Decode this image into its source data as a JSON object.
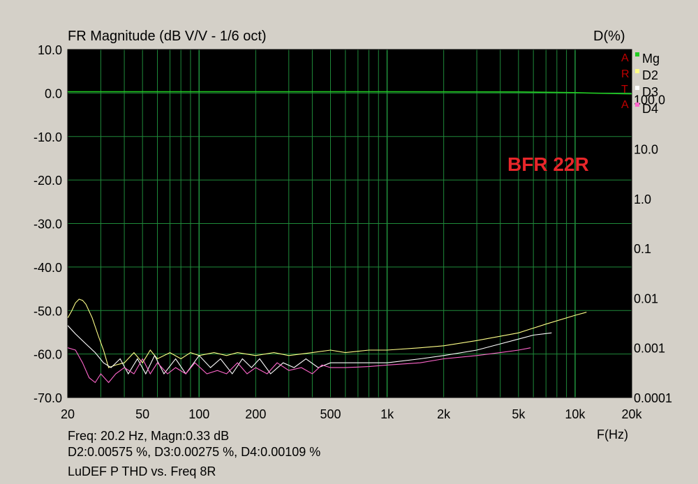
{
  "header": {
    "title": "FR Magnitude (dB V/V - 1/6 oct)",
    "right_title": "D(%)"
  },
  "arta_letters": [
    "A",
    "R",
    "T",
    "A"
  ],
  "footer": {
    "line1": "Freq: 20.2 Hz, Magn:0.33 dB",
    "line2": "D2:0.00575 %, D3:0.00275 %, D4:0.00109 %",
    "line3": "LuDEF P THD vs. Freq 8R"
  },
  "annotation": {
    "text": "BFR 22R",
    "color": "#e8262a"
  },
  "colors": {
    "background": "#d4d0c8",
    "plot_bg": "#000000",
    "grid": "#1f8a3a",
    "Mg": "#22cc22",
    "D2": "#ffff88",
    "D3": "#ffffff",
    "D4": "#ff66cc"
  },
  "chart_data": {
    "type": "line",
    "title": "FR Magnitude (dB V/V - 1/6 oct)",
    "xlabel": "F(Hz)",
    "ylabel_left": "dB",
    "ylabel_right": "D(%)",
    "x_scale": "log",
    "xlim": [
      20,
      20000
    ],
    "ylim_left": [
      -70,
      10
    ],
    "ylim_right": [
      0.0001,
      1000
    ],
    "y_right_scale": "log",
    "grid": true,
    "legend_position": "top-right",
    "x_ticks": [
      {
        "v": 20,
        "label": "20"
      },
      {
        "v": 50,
        "label": "50"
      },
      {
        "v": 100,
        "label": "100"
      },
      {
        "v": 200,
        "label": "200"
      },
      {
        "v": 500,
        "label": "500"
      },
      {
        "v": 1000,
        "label": "1k"
      },
      {
        "v": 2000,
        "label": "2k"
      },
      {
        "v": 5000,
        "label": "5k"
      },
      {
        "v": 10000,
        "label": "10k"
      },
      {
        "v": 20000,
        "label": "20k"
      }
    ],
    "y_left_ticks": [
      {
        "v": 10,
        "label": "10.0"
      },
      {
        "v": 0,
        "label": "0.0"
      },
      {
        "v": -10,
        "label": "-10.0"
      },
      {
        "v": -20,
        "label": "-20.0"
      },
      {
        "v": -30,
        "label": "-30.0"
      },
      {
        "v": -40,
        "label": "-40.0"
      },
      {
        "v": -50,
        "label": "-50.0"
      },
      {
        "v": -60,
        "label": "-60.0"
      },
      {
        "v": -70,
        "label": "-70.0"
      }
    ],
    "y_right_ticks": [
      {
        "v": 100,
        "label": "100.0"
      },
      {
        "v": 10,
        "label": "10.0"
      },
      {
        "v": 1,
        "label": "1.0"
      },
      {
        "v": 0.1,
        "label": "0.1"
      },
      {
        "v": 0.01,
        "label": "0.01"
      },
      {
        "v": 0.001,
        "label": "0.001"
      },
      {
        "v": 0.0001,
        "label": "0.0001"
      }
    ],
    "series": [
      {
        "name": "Mg",
        "axis": "left",
        "color": "#22cc22",
        "x": [
          20,
          50,
          100,
          500,
          1000,
          5000,
          10000,
          12000,
          15000,
          20000
        ],
        "y": [
          0.3,
          0.3,
          0.3,
          0.3,
          0.3,
          0.25,
          0.1,
          0.0,
          -0.1,
          -0.2
        ]
      },
      {
        "name": "D2",
        "axis": "right",
        "color": "#ffff88",
        "x": [
          20,
          21,
          22,
          23,
          24,
          25,
          27,
          29,
          31,
          33,
          36,
          40,
          45,
          50,
          55,
          60,
          70,
          80,
          90,
          100,
          120,
          140,
          160,
          200,
          250,
          300,
          400,
          500,
          600,
          800,
          1000,
          1500,
          2000,
          3000,
          5000,
          7000,
          10000,
          11500
        ],
        "y": [
          0.004,
          0.0055,
          0.008,
          0.0095,
          0.009,
          0.0075,
          0.004,
          0.0018,
          0.0009,
          0.0004,
          0.00045,
          0.0005,
          0.0008,
          0.0005,
          0.0009,
          0.0006,
          0.0008,
          0.0006,
          0.0008,
          0.0007,
          0.0008,
          0.0007,
          0.0008,
          0.0007,
          0.0008,
          0.0007,
          0.0008,
          0.0009,
          0.0008,
          0.0009,
          0.0009,
          0.001,
          0.0011,
          0.0014,
          0.002,
          0.003,
          0.0045,
          0.0052
        ]
      },
      {
        "name": "D3",
        "axis": "right",
        "color": "#ffffff",
        "x": [
          20,
          22,
          25,
          28,
          31,
          34,
          38,
          42,
          47,
          52,
          58,
          65,
          75,
          85,
          100,
          115,
          130,
          150,
          170,
          190,
          210,
          240,
          280,
          320,
          370,
          430,
          500,
          600,
          800,
          1000,
          1500,
          2000,
          3000,
          4000,
          5000,
          6000,
          7500
        ],
        "y": [
          0.0028,
          0.0019,
          0.0012,
          0.0008,
          0.0005,
          0.0004,
          0.0006,
          0.0003,
          0.0006,
          0.0003,
          0.0007,
          0.0003,
          0.0006,
          0.0003,
          0.0007,
          0.0004,
          0.0006,
          0.0003,
          0.0006,
          0.0004,
          0.0006,
          0.0003,
          0.0005,
          0.0004,
          0.0006,
          0.0004,
          0.0005,
          0.0005,
          0.0005,
          0.0005,
          0.0006,
          0.0007,
          0.0009,
          0.0012,
          0.0015,
          0.0018,
          0.002
        ]
      },
      {
        "name": "D4",
        "axis": "right",
        "color": "#ff66cc",
        "x": [
          20,
          22,
          24,
          26,
          28,
          30,
          33,
          36,
          40,
          45,
          50,
          55,
          60,
          68,
          75,
          85,
          95,
          110,
          125,
          140,
          160,
          180,
          200,
          230,
          260,
          300,
          350,
          400,
          450,
          500,
          600,
          800,
          1000,
          1500,
          2000,
          3000,
          4000,
          5000,
          5800
        ],
        "y": [
          0.001,
          0.0009,
          0.0005,
          0.00025,
          0.0002,
          0.0003,
          0.0002,
          0.0003,
          0.0004,
          0.0003,
          0.0006,
          0.0003,
          0.0005,
          0.0003,
          0.0004,
          0.0003,
          0.0005,
          0.0003,
          0.00035,
          0.0003,
          0.0005,
          0.0003,
          0.0004,
          0.0003,
          0.0005,
          0.00035,
          0.0004,
          0.0003,
          0.00045,
          0.0004,
          0.0004,
          0.00042,
          0.00045,
          0.0005,
          0.0006,
          0.0007,
          0.0008,
          0.0009,
          0.001
        ]
      }
    ]
  }
}
